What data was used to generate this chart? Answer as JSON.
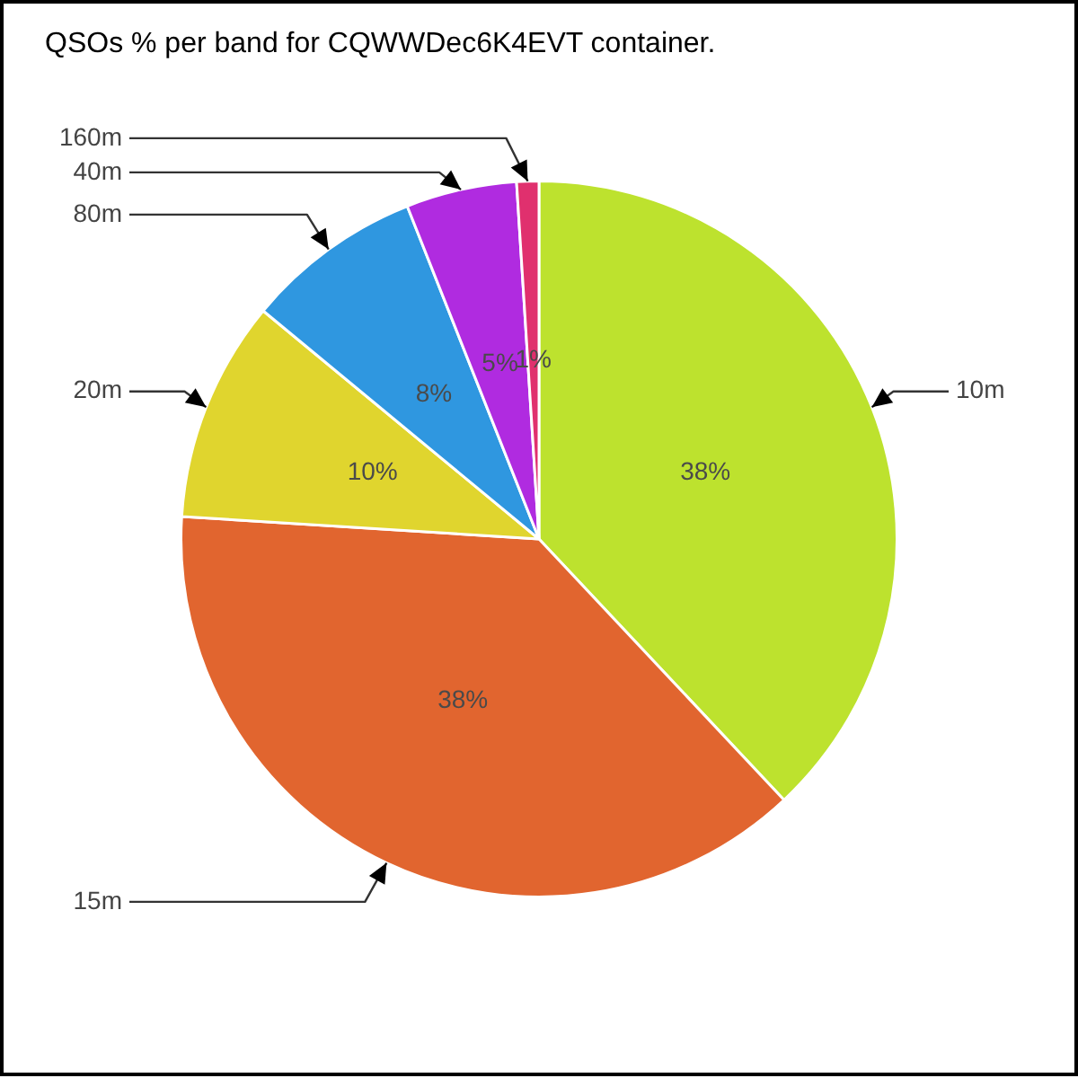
{
  "chart_data": {
    "type": "pie",
    "title": "QSOs % per band for CQWWDec6K4EVT container.",
    "categories": [
      "10m",
      "15m",
      "20m",
      "80m",
      "40m",
      "160m"
    ],
    "values": [
      38,
      38,
      10,
      8,
      5,
      1
    ],
    "colors": [
      "#bde22e",
      "#e1652f",
      "#e0d52e",
      "#2f97e0",
      "#b02be0",
      "#e0306e"
    ],
    "value_labels": [
      "38%",
      "38%",
      "10%",
      "8%",
      "5%",
      "1%"
    ]
  }
}
